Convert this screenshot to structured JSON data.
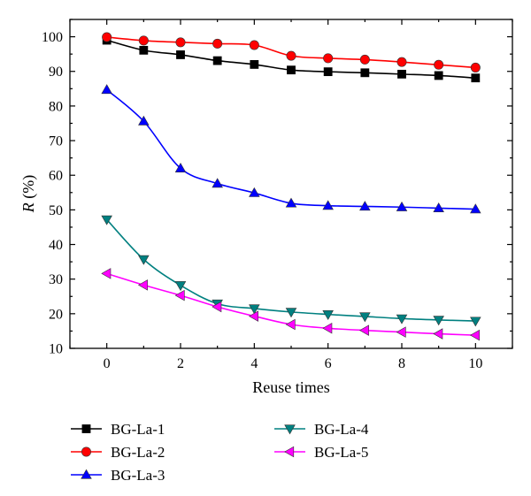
{
  "chart_data": {
    "type": "line",
    "xlabel": "Reuse times",
    "ylabel_italic": "R",
    "ylabel_rest": " (%)",
    "xlim": [
      -1,
      11
    ],
    "ylim": [
      10,
      105
    ],
    "xticks": [
      0,
      2,
      4,
      6,
      8,
      10
    ],
    "yticks": [
      10,
      20,
      30,
      40,
      50,
      60,
      70,
      80,
      90,
      100
    ],
    "x": [
      0,
      1,
      2,
      3,
      4,
      5,
      6,
      7,
      8,
      9,
      10
    ],
    "grid": false,
    "legend_position": "bottom",
    "series": [
      {
        "name": "BG-La-1",
        "marker": "square",
        "color": "#000000",
        "values": [
          99.0,
          96.1,
          94.8,
          93.1,
          92.0,
          90.4,
          89.9,
          89.6,
          89.2,
          88.8,
          88.1
        ]
      },
      {
        "name": "BG-La-2",
        "marker": "circle",
        "color": "#ff0000",
        "values": [
          99.9,
          98.9,
          98.4,
          98.0,
          97.6,
          94.5,
          93.8,
          93.4,
          92.7,
          91.9,
          91.1
        ]
      },
      {
        "name": "BG-La-3",
        "marker": "triangle-up",
        "color": "#0000ff",
        "values": [
          84.7,
          75.6,
          62.0,
          57.6,
          54.9,
          51.9,
          51.2,
          51.0,
          50.8,
          50.5,
          50.2
        ]
      },
      {
        "name": "BG-La-4",
        "marker": "triangle-down",
        "color": "#008080",
        "values": [
          47.2,
          35.7,
          28.2,
          22.9,
          21.5,
          20.5,
          19.8,
          19.2,
          18.6,
          18.2,
          17.9
        ]
      },
      {
        "name": "BG-La-5",
        "marker": "triangle-left",
        "color": "#ff00ff",
        "values": [
          31.6,
          28.3,
          25.3,
          22.0,
          19.3,
          16.9,
          15.8,
          15.2,
          14.7,
          14.2,
          13.8
        ]
      }
    ]
  }
}
